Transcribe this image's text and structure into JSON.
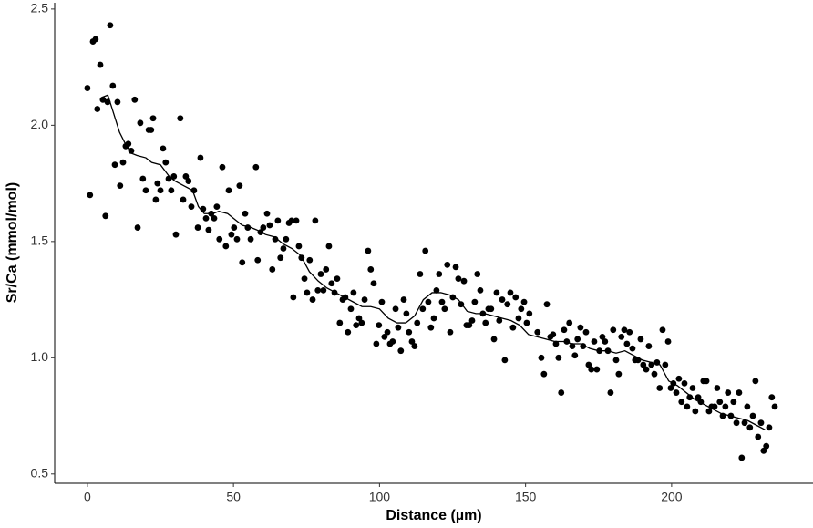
{
  "chart_data": {
    "type": "scatter",
    "xlabel": "Distance (µm)",
    "ylabel": "Sr/Ca (mmol/mol)",
    "xlim": [
      -11.2,
      248.4
    ],
    "ylim": [
      0.46,
      2.527
    ],
    "xticks": [
      0,
      50,
      100,
      150,
      200
    ],
    "yticks": [
      {
        "value": 0.5,
        "label": "0.5"
      },
      {
        "value": 1,
        "label": "1.0"
      },
      1.5,
      {
        "value": 2,
        "label": "2.0"
      },
      2.5
    ],
    "series": [
      {
        "type": "scatter",
        "color": "#000000",
        "x": [
          0,
          0.9,
          1.9,
          2.8,
          3.4,
          4.4,
          5.3,
          6.2,
          6.9,
          7.8,
          8.7,
          9.4,
          10.3,
          11.2,
          12.2,
          13.1,
          14,
          15,
          16.2,
          17.2,
          18.1,
          19,
          20,
          21,
          21.8,
          22.5,
          23.4,
          24,
          25,
          25.9,
          26.8,
          27.8,
          28.7,
          29.6,
          30.3,
          31.8,
          32.8,
          33.7,
          34.6,
          35.6,
          36.5,
          37.8,
          38.7,
          39.6,
          40.6,
          41.5,
          42.4,
          43.4,
          44.3,
          45.2,
          46.2,
          47.4,
          48.4,
          49.3,
          50.2,
          51.2,
          52.1,
          53,
          54,
          54.9,
          55.9,
          57.7,
          58.3,
          59.3,
          60.2,
          61.5,
          62.4,
          63.3,
          64.3,
          65.2,
          66.1,
          67.1,
          68,
          69,
          69.9,
          70.5,
          71.5,
          72.4,
          73.3,
          74.3,
          75.2,
          76.1,
          77.1,
          78,
          78.9,
          79.9,
          80.8,
          81.7,
          82.7,
          83.6,
          84.6,
          85.5,
          86.4,
          87.4,
          88.3,
          89.2,
          90.2,
          91.1,
          92,
          93,
          93.9,
          94.9,
          96.1,
          97,
          98,
          98.9,
          99.8,
          100.8,
          101.7,
          102.7,
          103.6,
          104.5,
          105.5,
          106.4,
          107.3,
          108.3,
          109.2,
          110.1,
          111.1,
          112,
          112.9,
          113.9,
          114.8,
          115.7,
          116.7,
          117.6,
          118.6,
          119.5,
          120.4,
          121.4,
          122.3,
          123.2,
          124.2,
          125.1,
          126.1,
          127,
          127.9,
          128.9,
          129.8,
          130.7,
          131.7,
          132.6,
          133.5,
          134.5,
          135.4,
          136.3,
          137.3,
          138.2,
          139.2,
          140.1,
          141,
          142,
          142.9,
          143.8,
          144.8,
          145.7,
          146.6,
          147.6,
          148.5,
          149.5,
          150.4,
          151.3,
          154.1,
          155.4,
          156.3,
          157.3,
          158.5,
          159.4,
          160.4,
          161.3,
          162.2,
          163.2,
          164.1,
          165,
          166,
          166.9,
          167.8,
          168.8,
          169.7,
          170.7,
          171.6,
          172.5,
          173.5,
          174.4,
          175.3,
          176.3,
          177.2,
          178.2,
          179.1,
          180,
          181,
          181.9,
          182.8,
          183.8,
          184.7,
          185.6,
          186.6,
          187.5,
          188.5,
          189.4,
          190.3,
          191.3,
          192.2,
          193.1,
          194.1,
          195,
          195.9,
          196.9,
          197.8,
          198.8,
          199.7,
          200.6,
          201.6,
          202.5,
          203.4,
          204.4,
          205.3,
          206.2,
          207.2,
          208.1,
          209.1,
          210,
          210.9,
          211.9,
          212.8,
          213.7,
          214.7,
          215.6,
          216.5,
          217.5,
          218.4,
          219.3,
          220.3,
          221.2,
          222.2,
          223.1,
          224,
          225,
          225.9,
          226.8,
          227.8,
          228.7,
          229.6,
          230.6,
          231.5,
          232.4,
          233.4,
          234.3,
          235.3
        ],
        "values": [
          2.16,
          1.7,
          2.36,
          2.37,
          2.07,
          2.26,
          2.11,
          1.61,
          2.1,
          2.43,
          2.17,
          1.83,
          2.1,
          1.74,
          1.84,
          1.91,
          1.92,
          1.89,
          2.11,
          1.56,
          2.01,
          1.77,
          1.72,
          1.98,
          1.98,
          2.03,
          1.68,
          1.75,
          1.72,
          1.9,
          1.84,
          1.77,
          1.72,
          1.78,
          1.53,
          2.03,
          1.68,
          1.78,
          1.76,
          1.65,
          1.72,
          1.56,
          1.86,
          1.64,
          1.6,
          1.55,
          1.62,
          1.6,
          1.65,
          1.51,
          1.82,
          1.48,
          1.72,
          1.53,
          1.56,
          1.51,
          1.74,
          1.41,
          1.62,
          1.56,
          1.51,
          1.82,
          1.42,
          1.54,
          1.56,
          1.62,
          1.57,
          1.38,
          1.51,
          1.59,
          1.43,
          1.47,
          1.51,
          1.58,
          1.59,
          1.26,
          1.59,
          1.48,
          1.43,
          1.34,
          1.28,
          1.42,
          1.25,
          1.59,
          1.29,
          1.36,
          1.29,
          1.38,
          1.48,
          1.32,
          1.28,
          1.34,
          1.15,
          1.25,
          1.26,
          1.11,
          1.21,
          1.28,
          1.14,
          1.17,
          1.15,
          1.25,
          1.46,
          1.38,
          1.32,
          1.06,
          1.14,
          1.24,
          1.09,
          1.11,
          1.06,
          1.07,
          1.21,
          1.13,
          1.03,
          1.25,
          1.19,
          1.11,
          1.07,
          1.05,
          1.15,
          1.36,
          1.21,
          1.46,
          1.24,
          1.13,
          1.17,
          1.29,
          1.36,
          1.24,
          1.21,
          1.4,
          1.11,
          1.26,
          1.39,
          1.34,
          1.23,
          1.33,
          1.14,
          1.14,
          1.16,
          1.24,
          1.36,
          1.29,
          1.19,
          1.15,
          1.21,
          1.21,
          1.08,
          1.28,
          1.16,
          1.25,
          0.99,
          1.23,
          1.28,
          1.13,
          1.26,
          1.17,
          1.21,
          1.24,
          1.15,
          1.19,
          1.11,
          1.0,
          0.93,
          1.23,
          1.09,
          1.1,
          1.06,
          1.0,
          0.85,
          1.12,
          1.07,
          1.15,
          1.05,
          1.01,
          1.08,
          1.13,
          1.05,
          1.11,
          0.97,
          0.95,
          1.07,
          0.95,
          1.03,
          1.09,
          1.07,
          1.03,
          0.85,
          1.12,
          0.99,
          0.93,
          1.09,
          1.12,
          1.06,
          1.11,
          1.04,
          0.99,
          0.99,
          1.08,
          0.97,
          0.95,
          1.05,
          0.97,
          0.93,
          0.98,
          0.87,
          1.12,
          0.97,
          1.07,
          0.87,
          0.89,
          0.85,
          0.91,
          0.81,
          0.89,
          0.79,
          0.83,
          0.87,
          0.77,
          0.83,
          0.81,
          0.9,
          0.9,
          0.77,
          0.79,
          0.79,
          0.87,
          0.81,
          0.75,
          0.79,
          0.85,
          0.75,
          0.81,
          0.72,
          0.85,
          0.57,
          0.72,
          0.79,
          0.7,
          0.75,
          0.9,
          0.66,
          0.72,
          0.6,
          0.62,
          0.7,
          0.83,
          0.79
        ]
      },
      {
        "type": "line",
        "color": "#000000",
        "x": [
          5,
          7,
          9,
          11,
          13,
          15,
          17,
          20,
          22,
          25,
          28,
          30,
          33,
          36,
          38,
          40,
          43,
          45,
          48,
          50,
          53,
          56,
          58,
          61,
          64,
          67,
          70,
          73,
          76,
          79,
          82,
          85,
          88,
          91,
          94,
          97,
          100,
          103,
          106,
          109,
          112,
          115,
          118,
          121,
          124,
          127,
          130,
          133,
          136,
          139,
          142,
          145,
          148,
          151,
          154,
          157,
          160,
          163,
          166,
          169,
          172,
          175,
          178,
          181,
          184,
          187,
          190,
          193,
          196,
          199,
          202,
          205,
          208,
          211,
          214,
          217,
          220,
          223,
          226,
          229,
          232
        ],
        "values": [
          2.12,
          2.13,
          2.05,
          1.97,
          1.92,
          1.88,
          1.87,
          1.86,
          1.84,
          1.83,
          1.78,
          1.76,
          1.74,
          1.72,
          1.65,
          1.62,
          1.62,
          1.63,
          1.62,
          1.6,
          1.57,
          1.56,
          1.55,
          1.53,
          1.52,
          1.49,
          1.47,
          1.44,
          1.37,
          1.33,
          1.3,
          1.28,
          1.26,
          1.24,
          1.22,
          1.22,
          1.21,
          1.17,
          1.15,
          1.15,
          1.18,
          1.25,
          1.28,
          1.28,
          1.27,
          1.25,
          1.2,
          1.19,
          1.19,
          1.18,
          1.17,
          1.16,
          1.14,
          1.1,
          1.09,
          1.08,
          1.07,
          1.07,
          1.06,
          1.06,
          1.04,
          1.03,
          1.03,
          1.02,
          1.03,
          1.01,
          0.99,
          0.98,
          0.97,
          0.9,
          0.88,
          0.85,
          0.82,
          0.8,
          0.78,
          0.76,
          0.75,
          0.74,
          0.73,
          0.71,
          0.69
        ]
      }
    ]
  }
}
